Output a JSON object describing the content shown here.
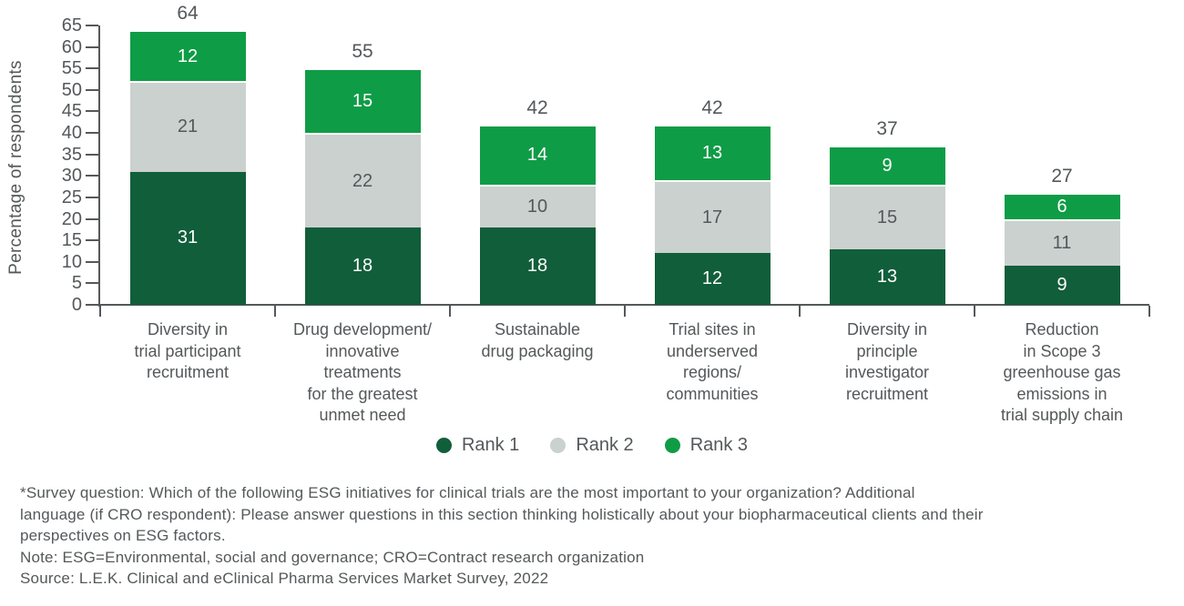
{
  "chart_data": {
    "type": "bar",
    "stacked": true,
    "title": "",
    "xlabel": "",
    "ylabel": "Percentage of respondents",
    "ylim": [
      0,
      65
    ],
    "y_ticks": [
      0,
      5,
      10,
      15,
      20,
      25,
      30,
      35,
      40,
      45,
      50,
      55,
      60,
      65
    ],
    "grid": false,
    "legend_position": "bottom",
    "categories": [
      [
        "Diversity in",
        "trial participant",
        "recruitment"
      ],
      [
        "Drug development/",
        "innovative",
        "treatments",
        "for the greatest",
        "unmet need"
      ],
      [
        "Sustainable",
        "drug packaging"
      ],
      [
        "Trial sites in",
        "underserved",
        "regions/",
        "communities"
      ],
      [
        "Diversity in",
        "principle",
        "investigator",
        "recruitment"
      ],
      [
        "Reduction",
        "in Scope 3",
        "greenhouse gas",
        "emissions in",
        "trial supply chain"
      ]
    ],
    "series": [
      {
        "name": "Rank 1",
        "color": "#115e3a",
        "label_color": "#ffffff",
        "values": [
          31,
          18,
          18,
          12,
          13,
          9
        ]
      },
      {
        "name": "Rank 2",
        "color": "#cbd1cf",
        "label_color": "#54585a",
        "values": [
          21,
          22,
          10,
          17,
          15,
          11
        ]
      },
      {
        "name": "Rank 3",
        "color": "#0f9c46",
        "label_color": "#ffffff",
        "values": [
          12,
          15,
          14,
          13,
          9,
          6
        ]
      }
    ],
    "totals": [
      64,
      55,
      42,
      42,
      37,
      27
    ]
  },
  "colors": {
    "axis": "#54585a",
    "text": "#54585a",
    "background": "#ffffff"
  },
  "footnote": {
    "lines": [
      "*Survey question: Which of the following ESG initiatives for clinical trials are the most important to your organization? Additional",
      "language (if CRO respondent): Please answer questions in this section thinking holistically about your biopharmaceutical clients and their",
      "perspectives on ESG factors.",
      "Note: ESG=Environmental, social and governance; CRO=Contract research organization",
      "Source: L.E.K. Clinical and eClinical Pharma Services Market Survey, 2022"
    ]
  }
}
